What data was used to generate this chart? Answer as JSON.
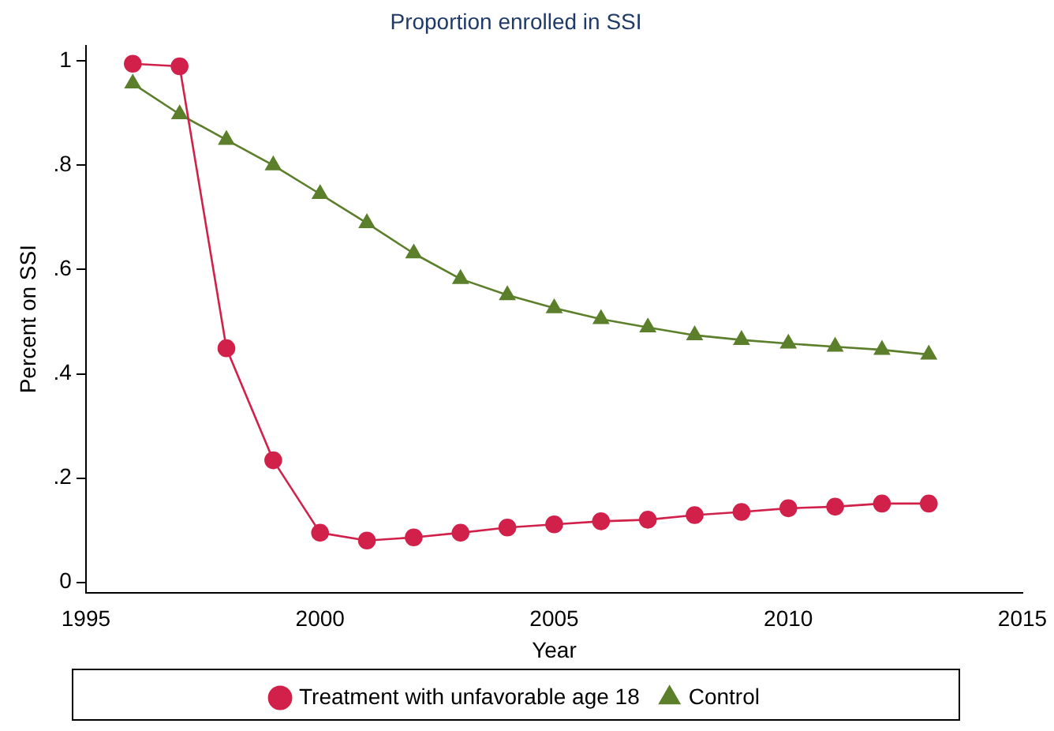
{
  "chart_data": {
    "type": "line",
    "title": "Proportion enrolled in SSI",
    "xlabel": "Year",
    "ylabel": "Percent on SSI",
    "x": [
      1996,
      1997,
      1998,
      1999,
      2000,
      2001,
      2002,
      2003,
      2004,
      2005,
      2006,
      2007,
      2008,
      2009,
      2010,
      2011,
      2012,
      2013
    ],
    "series": [
      {
        "name": "Treatment with unfavorable age 18",
        "color": "#d1214a",
        "marker": "circle",
        "values": [
          0.995,
          0.99,
          0.449,
          0.234,
          0.095,
          0.08,
          0.086,
          0.095,
          0.105,
          0.111,
          0.117,
          0.12,
          0.129,
          0.135,
          0.142,
          0.145,
          0.151,
          0.151
        ]
      },
      {
        "name": "Control",
        "color": "#5b7f2a",
        "marker": "triangle",
        "values": [
          0.957,
          0.898,
          0.849,
          0.8,
          0.745,
          0.689,
          0.631,
          0.582,
          0.551,
          0.526,
          0.505,
          0.489,
          0.474,
          0.465,
          0.458,
          0.452,
          0.446,
          0.437
        ]
      }
    ],
    "xlim": [
      1995,
      2015
    ],
    "xticks": [
      1995,
      2000,
      2005,
      2010,
      2015
    ],
    "ylim": [
      -0.02,
      1.03
    ],
    "yticks": [
      {
        "value": 0,
        "label": "0"
      },
      {
        "value": 0.2,
        "label": ".2"
      },
      {
        "value": 0.4,
        "label": ".4"
      },
      {
        "value": 0.6,
        "label": ".6"
      },
      {
        "value": 0.8,
        "label": ".8"
      },
      {
        "value": 1,
        "label": "1"
      }
    ],
    "grid": false,
    "legend": "bottom",
    "line_style": "solid"
  }
}
